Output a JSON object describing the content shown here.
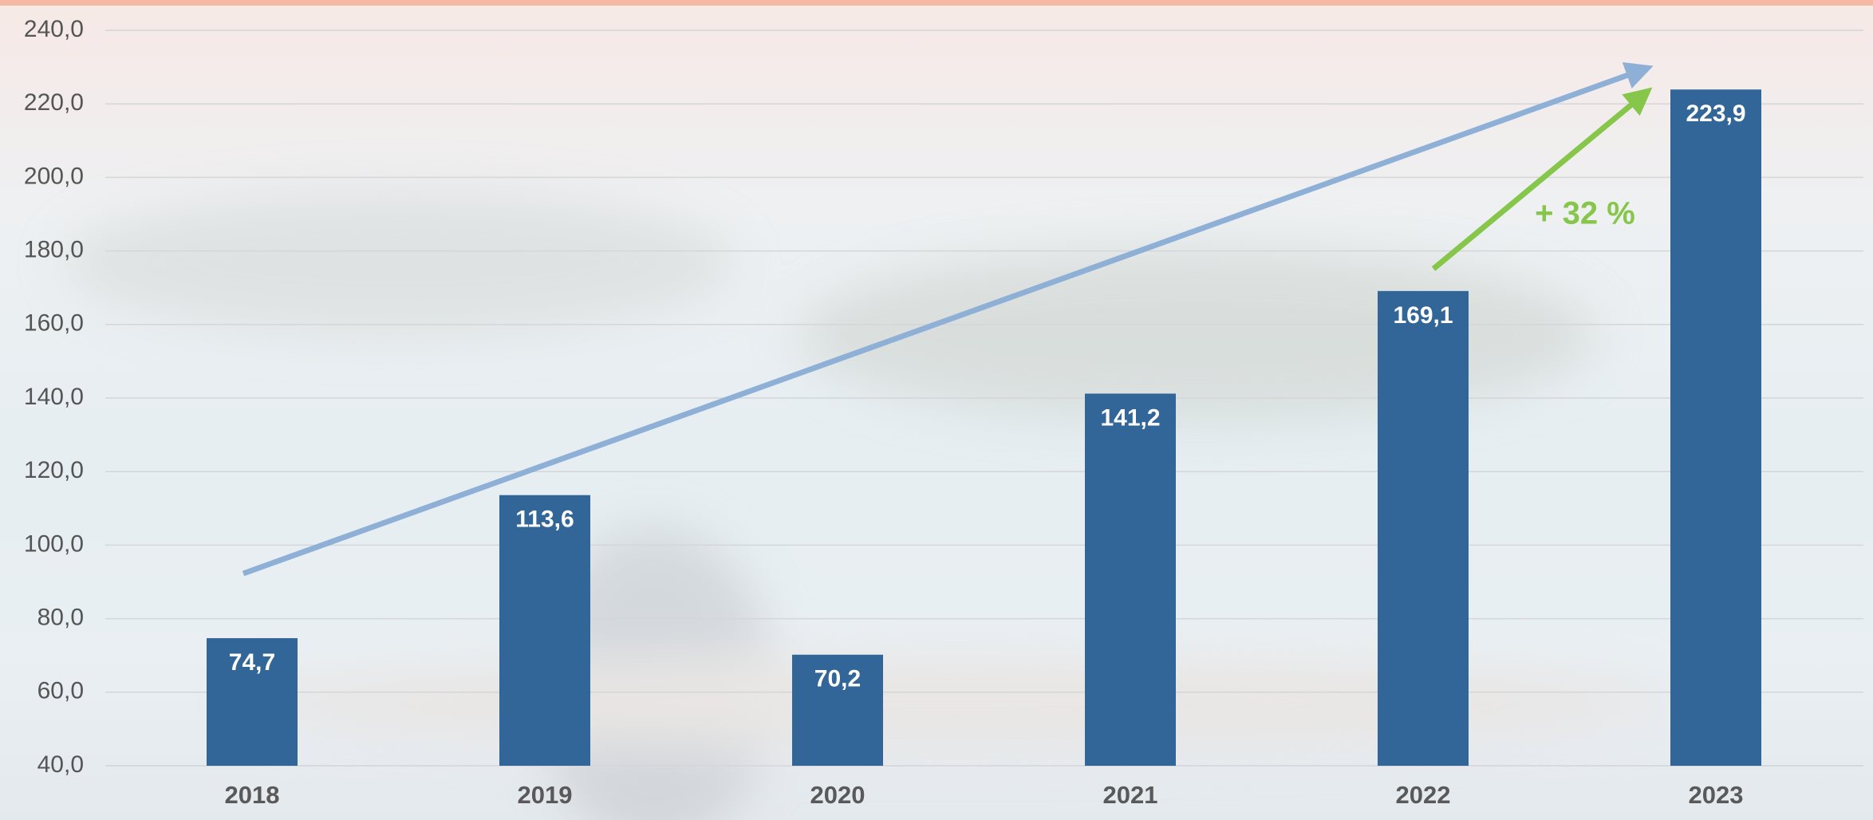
{
  "chart_data": {
    "type": "bar",
    "categories": [
      "2018",
      "2019",
      "2020",
      "2021",
      "2022",
      "2023"
    ],
    "values": [
      74.7,
      113.6,
      70.2,
      141.2,
      169.1,
      223.9
    ],
    "value_labels": [
      "74,7",
      "113,6",
      "70,2",
      "141,2",
      "169,1",
      "223,9"
    ],
    "color": "#326699",
    "ylim": [
      40,
      240
    ],
    "yticks": [
      {
        "value": 40,
        "label": "40,0"
      },
      {
        "value": 60,
        "label": "60,0"
      },
      {
        "value": 80,
        "label": "80,0"
      },
      {
        "value": 100,
        "label": "100,0"
      },
      {
        "value": 120,
        "label": "120,0"
      },
      {
        "value": 140,
        "label": "140,0"
      },
      {
        "value": 160,
        "label": "160,0"
      },
      {
        "value": 180,
        "label": "180,0"
      },
      {
        "value": 200,
        "label": "200,0"
      },
      {
        "value": 220,
        "label": "220,0"
      },
      {
        "value": 240,
        "label": "240,0"
      }
    ],
    "grid": true,
    "annotation": "+ 32 %"
  }
}
